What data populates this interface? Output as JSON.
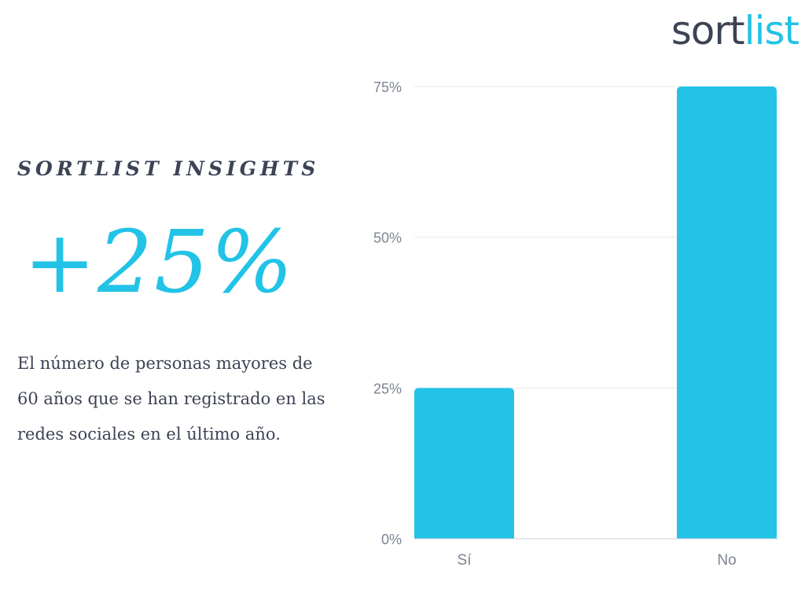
{
  "brand": {
    "logo_part1": "sort",
    "logo_part2": "list",
    "dark_color": "#3d4355",
    "accent_color": "#22c3e6"
  },
  "header": {
    "eyebrow": "SORTLIST INSIGHTS"
  },
  "stat": {
    "value": "+25%",
    "description": "El número de personas mayores de 60 años que se han registrado en las redes sociales en el último año."
  },
  "chart_data": {
    "type": "bar",
    "categories": [
      "Sí",
      "No"
    ],
    "values": [
      25,
      75
    ],
    "ylim": [
      0,
      75
    ],
    "yticks": [
      0,
      25,
      50,
      75
    ],
    "ytick_labels": [
      "0%",
      "25%",
      "50%",
      "75%"
    ],
    "grid": true,
    "bar_color": "#22c3e6"
  }
}
